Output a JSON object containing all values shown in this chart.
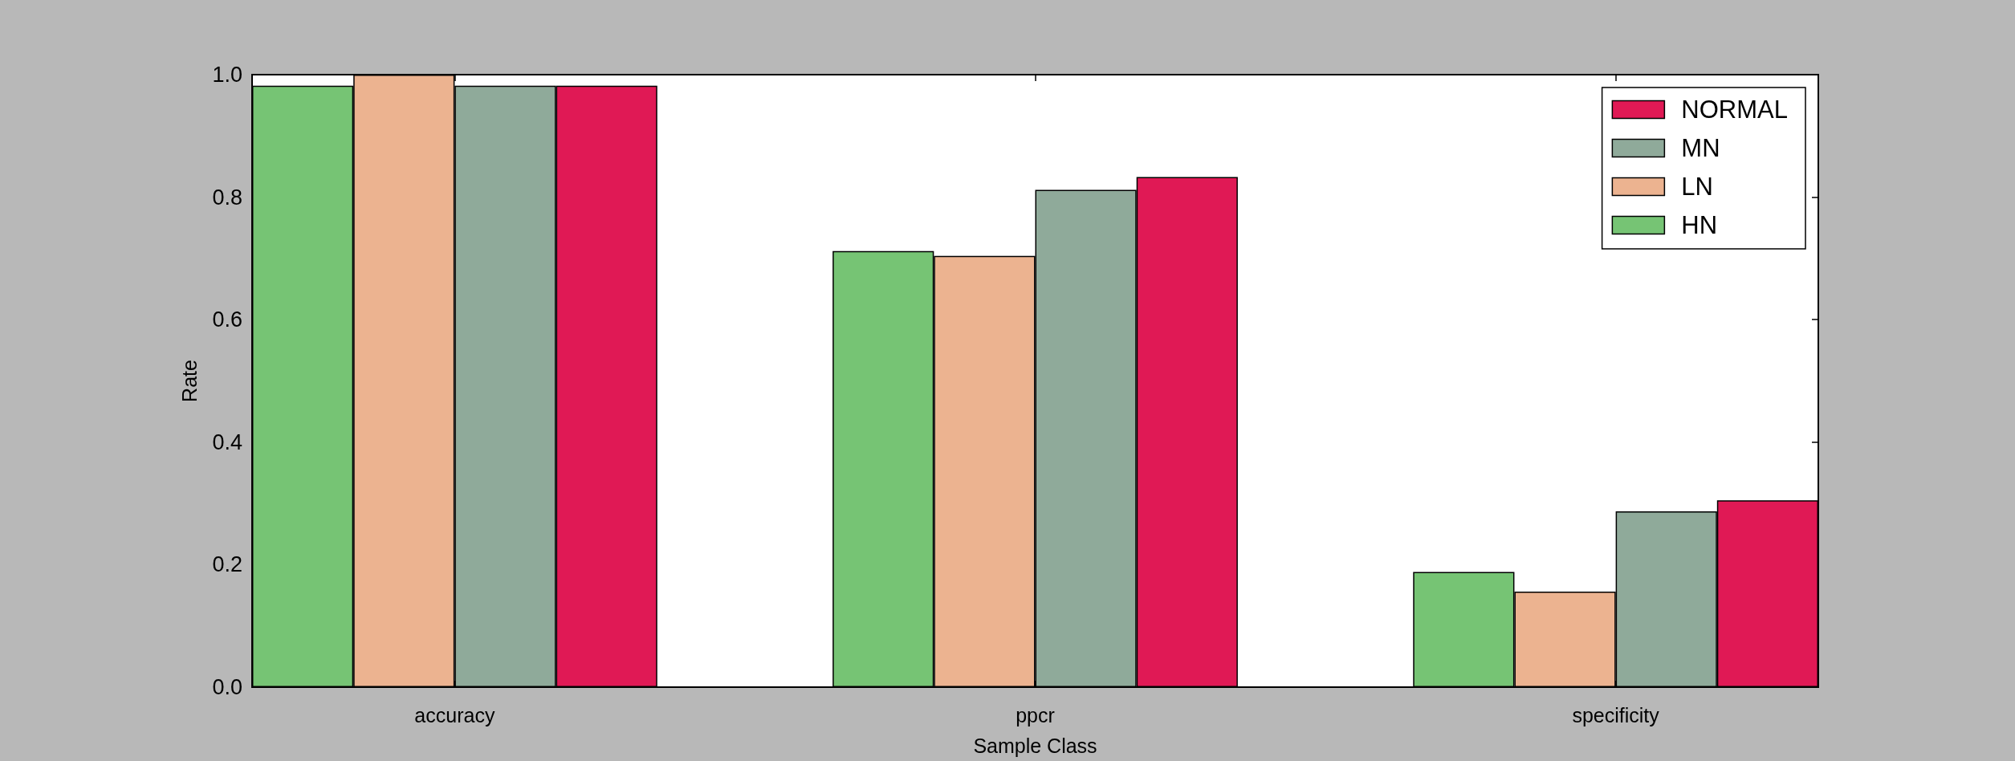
{
  "chart_data": {
    "type": "bar",
    "xlabel": "Sample Class",
    "ylabel": "Rate",
    "categories": [
      "accuracy",
      "ppcr",
      "specificity"
    ],
    "series": [
      {
        "name": "HN",
        "color": "#76c474",
        "values": [
          0.982,
          0.712,
          0.188
        ]
      },
      {
        "name": "LN",
        "color": "#ecb390",
        "values": [
          1.0,
          0.704,
          0.156
        ]
      },
      {
        "name": "MN",
        "color": "#8faa9a",
        "values": [
          0.982,
          0.812,
          0.287
        ]
      },
      {
        "name": "NORMAL",
        "color": "#e01955",
        "values": [
          0.982,
          0.833,
          0.305
        ]
      }
    ],
    "ylim": [
      0,
      1.0
    ],
    "yticks": [
      {
        "value": 0,
        "label": "0.0"
      },
      0.2,
      0.4,
      0.6,
      0.8,
      {
        "value": 1,
        "label": "1.0"
      }
    ],
    "grid": false,
    "legend": "top right"
  }
}
